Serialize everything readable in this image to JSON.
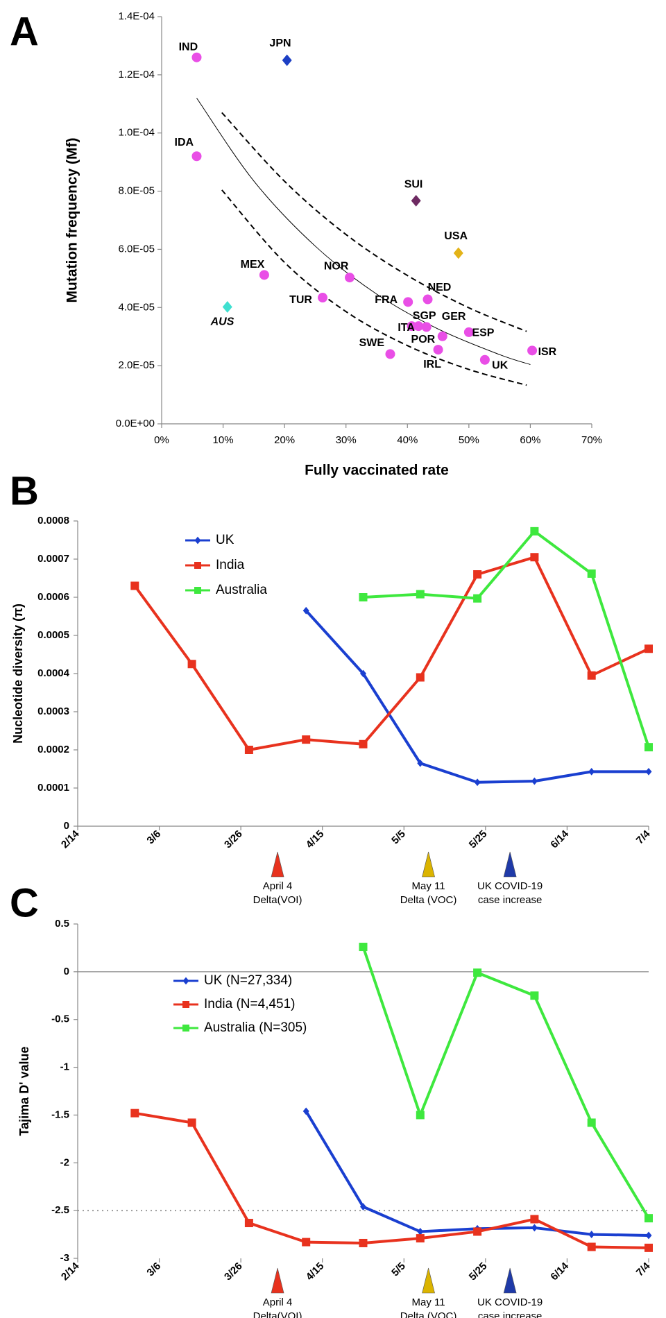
{
  "chart_data": [
    {
      "type": "scatter",
      "panel": "A",
      "x_label": "Fully vaccinated rate",
      "y_label": "Mutation frequency (Mf)",
      "xlim": [
        0,
        70
      ],
      "xticks": [
        {
          "value": 0,
          "label": "0%"
        },
        {
          "value": 10,
          "label": "10%"
        },
        {
          "value": 20,
          "label": "20%"
        },
        {
          "value": 30,
          "label": "30%"
        },
        {
          "value": 40,
          "label": "40%"
        },
        {
          "value": 50,
          "label": "50%"
        },
        {
          "value": 60,
          "label": "60%"
        },
        {
          "value": 70,
          "label": "70%"
        }
      ],
      "ylim": [
        0,
        0.00014
      ],
      "yticks": [
        {
          "value": 0,
          "label": "0.0E+00"
        },
        {
          "value": 2e-05,
          "label": "2.0E-05"
        },
        {
          "value": 4e-05,
          "label": "4.0E-05"
        },
        {
          "value": 6e-05,
          "label": "6.0E-05"
        },
        {
          "value": 8e-05,
          "label": "8.0E-05"
        },
        {
          "value": 0.0001,
          "label": "1.0E-04"
        },
        {
          "value": 0.00012,
          "label": "1.2E-04"
        },
        {
          "value": 0.00014,
          "label": "1.4E-04"
        }
      ],
      "labels": [
        "IND",
        "JPN",
        "IDA",
        "SUI",
        "USA",
        "MEX",
        "AUS",
        "NOR",
        "TUR",
        "FRA",
        "NED",
        "SGP",
        "GER",
        "ITA",
        "POR",
        "ESP",
        "SWE",
        "IRL",
        "UK",
        "ISR"
      ],
      "x": [
        5.7,
        20.4,
        5.7,
        41.4,
        48.3,
        16.7,
        10.7,
        30.6,
        26.2,
        40.1,
        43.3,
        40.7,
        41.8,
        43.1,
        45.7,
        50.0,
        37.2,
        45.0,
        52.6,
        60.3
      ],
      "y": [
        0.000126,
        0.000125,
        9.2e-05,
        7.67e-05,
        5.87e-05,
        5.12e-05,
        4.02e-05,
        5.03e-05,
        4.34e-05,
        4.19e-05,
        4.28e-05,
        3.36e-05,
        3.36e-05,
        3.33e-05,
        3.01e-05,
        3.15e-05,
        2.4e-05,
        2.55e-05,
        2.2e-05,
        2.52e-05
      ],
      "colors": [
        "#e94ee6",
        "#1c3fc4",
        "#e94ee6",
        "#6e2a62",
        "#e3b318",
        "#e94ee6",
        "#3fe0d0",
        "#e94ee6",
        "#e94ee6",
        "#e94ee6",
        "#e94ee6",
        "#e94ee6",
        "#e94ee6",
        "#e94ee6",
        "#e94ee6",
        "#e94ee6",
        "#e94ee6",
        "#e94ee6",
        "#e94ee6",
        "#e94ee6"
      ],
      "markers": [
        "circle",
        "diamond",
        "circle",
        "diamond",
        "diamond",
        "circle",
        "diamond",
        "circle",
        "circle",
        "circle",
        "circle",
        "circle",
        "circle",
        "circle",
        "circle",
        "circle",
        "circle",
        "circle",
        "circle",
        "circle"
      ],
      "italic_labels": [
        "AUS"
      ],
      "curves": [
        {
          "style": "solid",
          "x": [
            5.7,
            15,
            25,
            35,
            45,
            55,
            60
          ],
          "y": [
            0.000112,
            8.35e-05,
            6.11e-05,
            4.46e-05,
            3.26e-05,
            2.38e-05,
            2.04e-05
          ]
        },
        {
          "style": "dashed",
          "x": [
            9.8,
            20,
            30,
            40,
            50,
            59.4
          ],
          "y": [
            0.000107,
            8.34e-05,
            6.51e-05,
            5.1e-05,
            3.99e-05,
            3.18e-05
          ]
        },
        {
          "style": "dashed",
          "x": [
            9.8,
            20,
            30,
            40,
            50,
            59.4
          ],
          "y": [
            8.04e-05,
            5.55e-05,
            3.86e-05,
            2.69e-05,
            1.87e-05,
            1.33e-05
          ]
        }
      ]
    },
    {
      "type": "line",
      "panel": "B",
      "y_label": "Nucleotide diversity (π)",
      "xlim": [
        "2/14",
        "7/4"
      ],
      "xticks": [
        "2/14",
        "3/6",
        "3/26",
        "4/15",
        "5/5",
        "5/25",
        "6/14",
        "7/4"
      ],
      "ylim": [
        0,
        0.0008
      ],
      "yticks": [
        0,
        0.0001,
        0.0002,
        0.0003,
        0.0004,
        0.0005,
        0.0006,
        0.0007,
        0.0008
      ],
      "x": [
        "2/28",
        "3/14",
        "3/28",
        "4/11",
        "4/25",
        "5/9",
        "5/23",
        "6/6",
        "6/20",
        "7/4"
      ],
      "series": [
        {
          "name": "UK",
          "color": "#1a3fd0",
          "marker": "diamond",
          "values": [
            null,
            null,
            null,
            0.000565,
            0.0004,
            0.000165,
            0.000115,
            0.000118,
            0.000143,
            0.000143
          ]
        },
        {
          "name": "India",
          "color": "#e8321e",
          "marker": "square",
          "values": [
            0.00063,
            0.000425,
            0.0002,
            0.000227,
            0.000215,
            0.00039,
            0.00066,
            0.000705,
            0.000395,
            0.000465
          ]
        },
        {
          "name": "Australia",
          "color": "#3ee83e",
          "marker": "square",
          "values": [
            null,
            null,
            null,
            null,
            0.0006,
            0.000608,
            0.000597,
            0.000773,
            0.000662,
            0.000207
          ]
        }
      ],
      "annotations": [
        {
          "x": "4/4",
          "color": "#e8321e",
          "lines": [
            "April 4",
            "Delta(VOI)"
          ]
        },
        {
          "x": "5/11",
          "color": "#dbb400",
          "lines": [
            "May 11",
            "Delta (VOC)"
          ]
        },
        {
          "x": "5/31",
          "color": "#1f3aa8",
          "lines": [
            "UK COVID-19",
            "case increase"
          ]
        }
      ]
    },
    {
      "type": "line",
      "panel": "C",
      "y_label": "Tajima D' value",
      "xlim": [
        "2/14",
        "7/4"
      ],
      "xticks": [
        "2/14",
        "3/6",
        "3/26",
        "4/15",
        "5/5",
        "5/25",
        "6/14",
        "7/4"
      ],
      "ylim": [
        -3,
        0.5
      ],
      "yticks": [
        -3,
        -2.5,
        -2,
        -1.5,
        -1,
        -0.5,
        0,
        0.5
      ],
      "reference_line": -2.5,
      "x": [
        "2/28",
        "3/14",
        "3/28",
        "4/11",
        "4/25",
        "5/9",
        "5/23",
        "6/6",
        "6/20",
        "7/4"
      ],
      "series": [
        {
          "name": "UK (N=27,334)",
          "color": "#1a3fd0",
          "marker": "diamond",
          "values": [
            null,
            null,
            null,
            -1.46,
            -2.46,
            -2.72,
            -2.69,
            -2.68,
            -2.75,
            -2.76
          ]
        },
        {
          "name": "India (N=4,451)",
          "color": "#e8321e",
          "marker": "square",
          "values": [
            -1.48,
            -1.58,
            -2.63,
            -2.83,
            -2.84,
            -2.79,
            -2.72,
            -2.59,
            -2.88,
            -2.89
          ]
        },
        {
          "name": "Australia (N=305)",
          "color": "#3ee83e",
          "marker": "square",
          "values": [
            null,
            null,
            null,
            null,
            0.26,
            -1.5,
            -0.01,
            -0.25,
            -1.58,
            -2.58
          ]
        }
      ],
      "annotations": [
        {
          "x": "4/4",
          "color": "#e8321e",
          "lines": [
            "April 4",
            "Delta(VOI)"
          ]
        },
        {
          "x": "5/11",
          "color": "#dbb400",
          "lines": [
            "May 11",
            "Delta (VOC)"
          ]
        },
        {
          "x": "5/31",
          "color": "#1f3aa8",
          "lines": [
            "UK COVID-19",
            "case increase"
          ]
        }
      ]
    }
  ]
}
